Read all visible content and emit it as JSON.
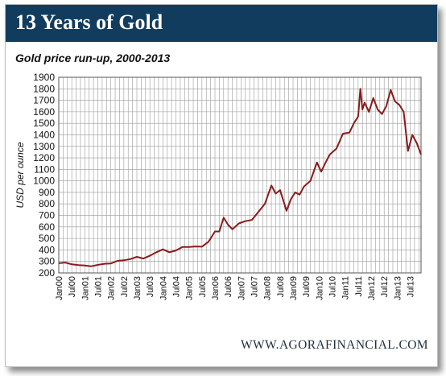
{
  "header": {
    "title": "13 Years of Gold"
  },
  "chart_data": {
    "type": "line",
    "title": "13 Years of Gold",
    "subtitle": "Gold price run-up, 2000-2013",
    "xlabel": "",
    "ylabel": "USD per ounce",
    "ylim": [
      200,
      1900
    ],
    "yticks": [
      200,
      300,
      400,
      500,
      600,
      700,
      800,
      900,
      1000,
      1100,
      1200,
      1300,
      1400,
      1500,
      1600,
      1700,
      1800,
      1900
    ],
    "xlim": [
      "2000-01",
      "2013-12"
    ],
    "xtick_labels": [
      "Jan00",
      "Jul00",
      "Jan01",
      "Jul01",
      "Jan02",
      "Jul02",
      "Jan03",
      "Jul03",
      "Jan04",
      "Jul04",
      "Jan05",
      "Jul05",
      "Jan06",
      "Jul06",
      "Jan07",
      "Jul07",
      "Jan08",
      "Jul08",
      "Jan09",
      "Jul09",
      "Jan10",
      "Jul10",
      "Jan11",
      "Jul11",
      "Jan12",
      "Jul12",
      "Jan13",
      "Jul13"
    ],
    "grid": true,
    "legend": "none",
    "line_color": "#8b1a1a",
    "series": [
      {
        "x": [
          "2000-01",
          "2000-04",
          "2000-07",
          "2000-10",
          "2001-01",
          "2001-04",
          "2001-07",
          "2001-10",
          "2002-01",
          "2002-04",
          "2002-07",
          "2002-10",
          "2003-01",
          "2003-04",
          "2003-07",
          "2003-10",
          "2004-01",
          "2004-04",
          "2004-07",
          "2004-10",
          "2005-01",
          "2005-04",
          "2005-07",
          "2005-10",
          "2006-01",
          "2006-03",
          "2006-05",
          "2006-07",
          "2006-09",
          "2006-12",
          "2007-03",
          "2007-06",
          "2007-09",
          "2007-12",
          "2008-03",
          "2008-05",
          "2008-07",
          "2008-10",
          "2008-12",
          "2009-02",
          "2009-04",
          "2009-06",
          "2009-09",
          "2009-12",
          "2010-02",
          "2010-04",
          "2010-06",
          "2010-09",
          "2010-12",
          "2011-03",
          "2011-05",
          "2011-07",
          "2011-08",
          "2011-09",
          "2011-10",
          "2011-12",
          "2012-02",
          "2012-04",
          "2012-06",
          "2012-08",
          "2012-10",
          "2012-12",
          "2013-02",
          "2013-04",
          "2013-06",
          "2013-08",
          "2013-10",
          "2013-12"
        ],
        "values": [
          285,
          290,
          275,
          268,
          265,
          258,
          270,
          280,
          282,
          305,
          310,
          320,
          340,
          325,
          350,
          380,
          405,
          380,
          395,
          425,
          425,
          430,
          428,
          470,
          560,
          560,
          680,
          620,
          580,
          630,
          650,
          660,
          730,
          800,
          960,
          890,
          920,
          740,
          840,
          900,
          880,
          950,
          1000,
          1160,
          1080,
          1160,
          1230,
          1280,
          1410,
          1420,
          1500,
          1560,
          1800,
          1620,
          1680,
          1600,
          1720,
          1620,
          1580,
          1650,
          1790,
          1690,
          1660,
          1600,
          1260,
          1400,
          1330,
          1230
        ]
      }
    ]
  },
  "footer": {
    "source": "WWW.AGORAFINANCIAL.COM"
  }
}
